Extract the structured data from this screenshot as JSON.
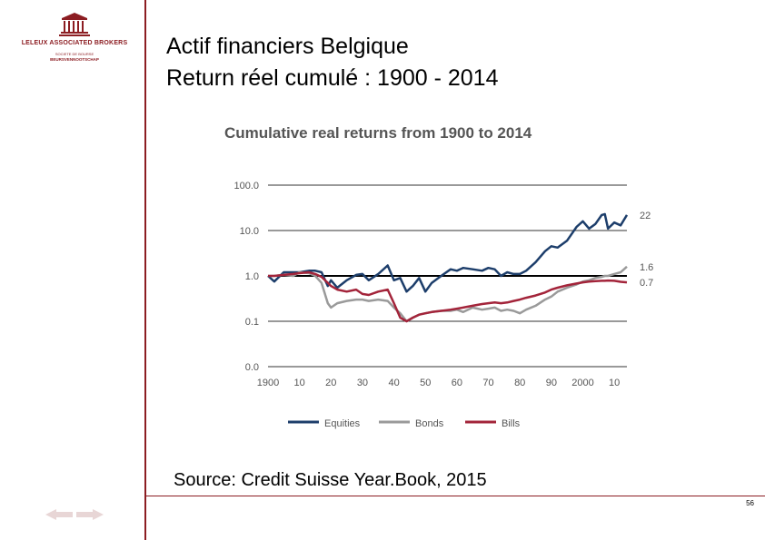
{
  "logo": {
    "name": "LELEUX ASSOCIATED BROKERS",
    "sub1": "SOCIETE DE BOURSE",
    "sub2": "BEURSVENNOOTSCHAP"
  },
  "slide": {
    "title_line1": "Actif financiers Belgique",
    "title_line2": "Return réel cumulé : 1900 - 2014",
    "source": "Source: Credit Suisse Year.Book, 2015",
    "page_number": "56"
  },
  "colors": {
    "accent": "#8c1d22",
    "equities": "#1d3e6b",
    "bonds": "#9a9a9a",
    "bills": "#a3243a"
  },
  "chart_data": {
    "type": "line",
    "title": "Cumulative real returns from 1900 to 2014",
    "y_scale": "log",
    "ylim": [
      0.01,
      100
    ],
    "y_ticks": [
      {
        "value": 100,
        "label": "100.0"
      },
      {
        "value": 10,
        "label": "10.0"
      },
      {
        "value": 1,
        "label": "1.0"
      },
      {
        "value": 0.1,
        "label": "0.1"
      },
      {
        "value": 0.01,
        "label": "0.0"
      }
    ],
    "xlim": [
      1900,
      2014
    ],
    "x_ticks": [
      {
        "value": 1900,
        "label": "1900"
      },
      {
        "value": 1910,
        "label": "10"
      },
      {
        "value": 1920,
        "label": "20"
      },
      {
        "value": 1930,
        "label": "30"
      },
      {
        "value": 1940,
        "label": "40"
      },
      {
        "value": 1950,
        "label": "50"
      },
      {
        "value": 1960,
        "label": "60"
      },
      {
        "value": 1970,
        "label": "70"
      },
      {
        "value": 1980,
        "label": "80"
      },
      {
        "value": 1990,
        "label": "90"
      },
      {
        "value": 2000,
        "label": "2000"
      },
      {
        "value": 2010,
        "label": "10"
      }
    ],
    "grid": "horizontal",
    "legend": "bottom",
    "x": [
      1900,
      1902,
      1905,
      1908,
      1910,
      1913,
      1915,
      1917,
      1919,
      1920,
      1922,
      1925,
      1928,
      1930,
      1932,
      1935,
      1938,
      1940,
      1942,
      1944,
      1946,
      1948,
      1950,
      1952,
      1955,
      1958,
      1960,
      1962,
      1965,
      1968,
      1970,
      1972,
      1974,
      1976,
      1978,
      1980,
      1982,
      1985,
      1988,
      1990,
      1992,
      1995,
      1998,
      2000,
      2002,
      2004,
      2006,
      2007,
      2008,
      2010,
      2012,
      2014
    ],
    "series": [
      {
        "name": "Equities",
        "color": "#1d3e6b",
        "end_label": "22",
        "values": [
          1.0,
          0.75,
          1.2,
          1.2,
          1.2,
          1.3,
          1.3,
          1.2,
          0.6,
          0.8,
          0.55,
          0.8,
          1.05,
          1.1,
          0.8,
          1.1,
          1.7,
          0.8,
          0.9,
          0.45,
          0.6,
          0.9,
          0.45,
          0.7,
          1.0,
          1.4,
          1.3,
          1.5,
          1.4,
          1.3,
          1.5,
          1.4,
          1.0,
          1.2,
          1.1,
          1.1,
          1.3,
          2.0,
          3.5,
          4.5,
          4.2,
          6.0,
          12.0,
          16.0,
          11.0,
          14.0,
          22.0,
          23.0,
          11.0,
          15.0,
          13.0,
          22.0
        ]
      },
      {
        "name": "Bonds",
        "color": "#9a9a9a",
        "end_label": "1.6",
        "values": [
          1.0,
          1.0,
          1.05,
          1.0,
          1.2,
          1.15,
          1.0,
          0.7,
          0.25,
          0.2,
          0.25,
          0.28,
          0.3,
          0.3,
          0.28,
          0.3,
          0.28,
          0.2,
          0.15,
          0.1,
          0.12,
          0.14,
          0.15,
          0.16,
          0.17,
          0.17,
          0.18,
          0.16,
          0.2,
          0.18,
          0.19,
          0.2,
          0.17,
          0.18,
          0.17,
          0.15,
          0.18,
          0.22,
          0.3,
          0.35,
          0.45,
          0.55,
          0.65,
          0.75,
          0.8,
          0.9,
          0.95,
          1.0,
          1.0,
          1.1,
          1.2,
          1.6
        ]
      },
      {
        "name": "Bills",
        "color": "#a3243a",
        "end_label": "0.7",
        "values": [
          1.0,
          1.0,
          1.05,
          1.1,
          1.15,
          1.2,
          1.1,
          0.95,
          0.7,
          0.6,
          0.5,
          0.45,
          0.5,
          0.4,
          0.38,
          0.45,
          0.5,
          0.25,
          0.12,
          0.1,
          0.12,
          0.14,
          0.15,
          0.16,
          0.17,
          0.18,
          0.19,
          0.2,
          0.22,
          0.24,
          0.25,
          0.26,
          0.25,
          0.26,
          0.28,
          0.3,
          0.33,
          0.37,
          0.43,
          0.5,
          0.55,
          0.62,
          0.68,
          0.72,
          0.75,
          0.77,
          0.78,
          0.78,
          0.79,
          0.78,
          0.74,
          0.72
        ]
      }
    ]
  }
}
